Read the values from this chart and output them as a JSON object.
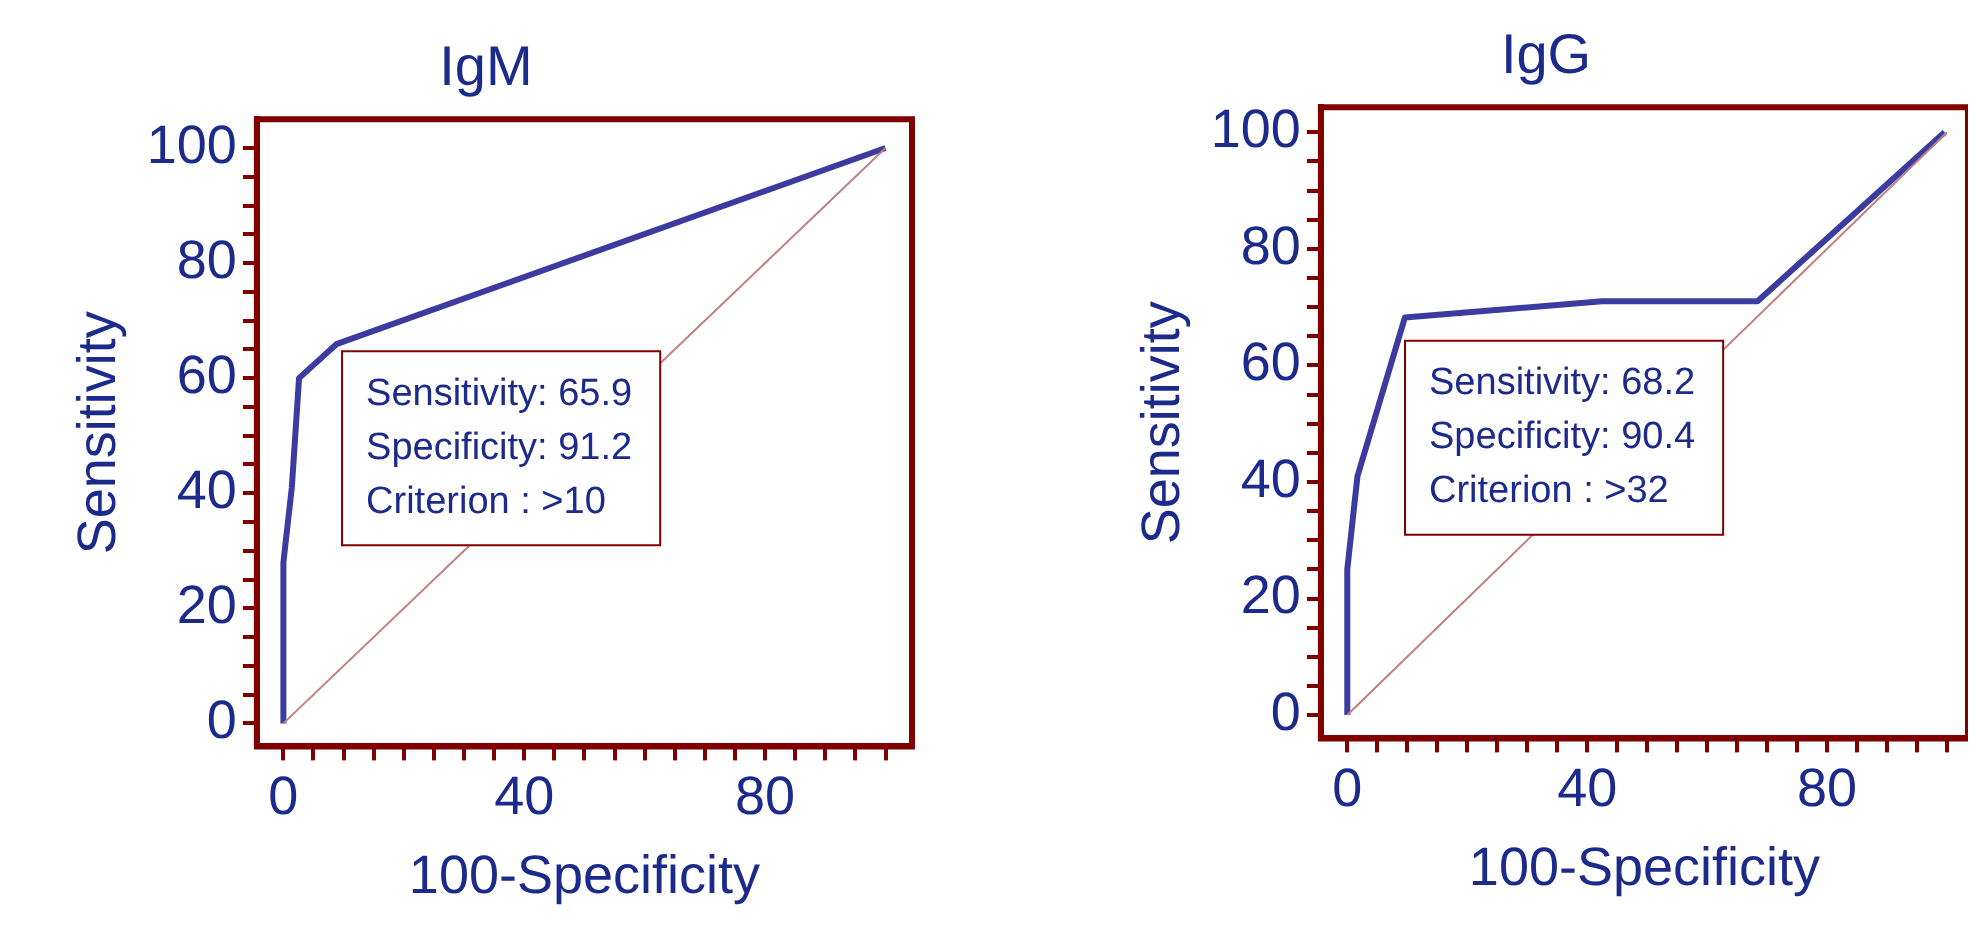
{
  "chart_data": [
    {
      "type": "line",
      "title": "IgM",
      "xlabel": "100-Specificity",
      "ylabel": "Sensitivity",
      "xlim": [
        -4.4,
        104.4
      ],
      "ylim": [
        -4,
        105
      ],
      "xticks": [
        0,
        {
          "value": 5,
          "label": null
        },
        {
          "value": 10,
          "label": null
        },
        {
          "value": 15,
          "label": null
        },
        {
          "value": 20,
          "label": null
        },
        {
          "value": 25,
          "label": null
        },
        {
          "value": 30,
          "label": null
        },
        {
          "value": 35,
          "label": null
        },
        40,
        {
          "value": 45,
          "label": null
        },
        {
          "value": 50,
          "label": null
        },
        {
          "value": 55,
          "label": null
        },
        {
          "value": 60,
          "label": null
        },
        {
          "value": 65,
          "label": null
        },
        {
          "value": 70,
          "label": null
        },
        {
          "value": 75,
          "label": null
        },
        80,
        {
          "value": 85,
          "label": null
        },
        {
          "value": 90,
          "label": null
        },
        {
          "value": 95,
          "label": null
        },
        {
          "value": 100,
          "label": null
        }
      ],
      "yticks": [
        0,
        {
          "value": 5,
          "label": null
        },
        {
          "value": 10,
          "label": null
        },
        {
          "value": 15,
          "label": null
        },
        20,
        {
          "value": 25,
          "label": null
        },
        {
          "value": 30,
          "label": null
        },
        {
          "value": 35,
          "label": null
        },
        40,
        {
          "value": 45,
          "label": null
        },
        {
          "value": 50,
          "label": null
        },
        {
          "value": 55,
          "label": null
        },
        60,
        {
          "value": 65,
          "label": null
        },
        {
          "value": 70,
          "label": null
        },
        {
          "value": 75,
          "label": null
        },
        80,
        {
          "value": 85,
          "label": null
        },
        {
          "value": 90,
          "label": null
        },
        {
          "value": 95,
          "label": null
        },
        100
      ],
      "marker": "none",
      "series": [
        {
          "color": "#c08080",
          "x": [
            0,
            100
          ],
          "values": [
            0,
            100
          ]
        },
        {
          "color": "#3c3ca0",
          "x": [
            0,
            0,
            1.4,
            2.6,
            8.8,
            100
          ],
          "values": [
            0,
            28,
            41,
            60,
            65.9,
            100
          ]
        }
      ],
      "annotations": [
        "Sensitivity: 65.9",
        "Specificity: 91.2",
        "Criterion : >10"
      ]
    },
    {
      "type": "line",
      "title": "IgG",
      "xlabel": "100-Specificity",
      "ylabel": "Sensitivity",
      "xlim": [
        -4.4,
        103.5
      ],
      "ylim": [
        -4,
        104.3
      ],
      "xticks": [
        0,
        {
          "value": 5,
          "label": null
        },
        {
          "value": 10,
          "label": null
        },
        {
          "value": 15,
          "label": null
        },
        {
          "value": 20,
          "label": null
        },
        {
          "value": 25,
          "label": null
        },
        {
          "value": 30,
          "label": null
        },
        {
          "value": 35,
          "label": null
        },
        40,
        {
          "value": 45,
          "label": null
        },
        {
          "value": 50,
          "label": null
        },
        {
          "value": 55,
          "label": null
        },
        {
          "value": 60,
          "label": null
        },
        {
          "value": 65,
          "label": null
        },
        {
          "value": 70,
          "label": null
        },
        {
          "value": 75,
          "label": null
        },
        80,
        {
          "value": 85,
          "label": null
        },
        {
          "value": 90,
          "label": null
        },
        {
          "value": 95,
          "label": null
        },
        {
          "value": 100,
          "label": null
        }
      ],
      "yticks": [
        0,
        {
          "value": 5,
          "label": null
        },
        {
          "value": 10,
          "label": null
        },
        {
          "value": 15,
          "label": null
        },
        20,
        {
          "value": 25,
          "label": null
        },
        {
          "value": 30,
          "label": null
        },
        {
          "value": 35,
          "label": null
        },
        40,
        {
          "value": 45,
          "label": null
        },
        {
          "value": 50,
          "label": null
        },
        {
          "value": 55,
          "label": null
        },
        60,
        {
          "value": 65,
          "label": null
        },
        {
          "value": 70,
          "label": null
        },
        {
          "value": 75,
          "label": null
        },
        80,
        {
          "value": 85,
          "label": null
        },
        {
          "value": 90,
          "label": null
        },
        {
          "value": 95,
          "label": null
        },
        100
      ],
      "marker": "none",
      "series": [
        {
          "color": "#c08080",
          "x": [
            0,
            100
          ],
          "values": [
            0,
            100
          ]
        },
        {
          "color": "#3c3ca0",
          "x": [
            0,
            0,
            1.7,
            9.6,
            42.5,
            68.4,
            99.6
          ],
          "values": [
            0,
            25,
            41,
            68.2,
            71,
            71,
            100
          ]
        }
      ],
      "annotations": [
        "Sensitivity: 68.2",
        "Specificity: 90.4",
        "Criterion : >32"
      ]
    }
  ]
}
